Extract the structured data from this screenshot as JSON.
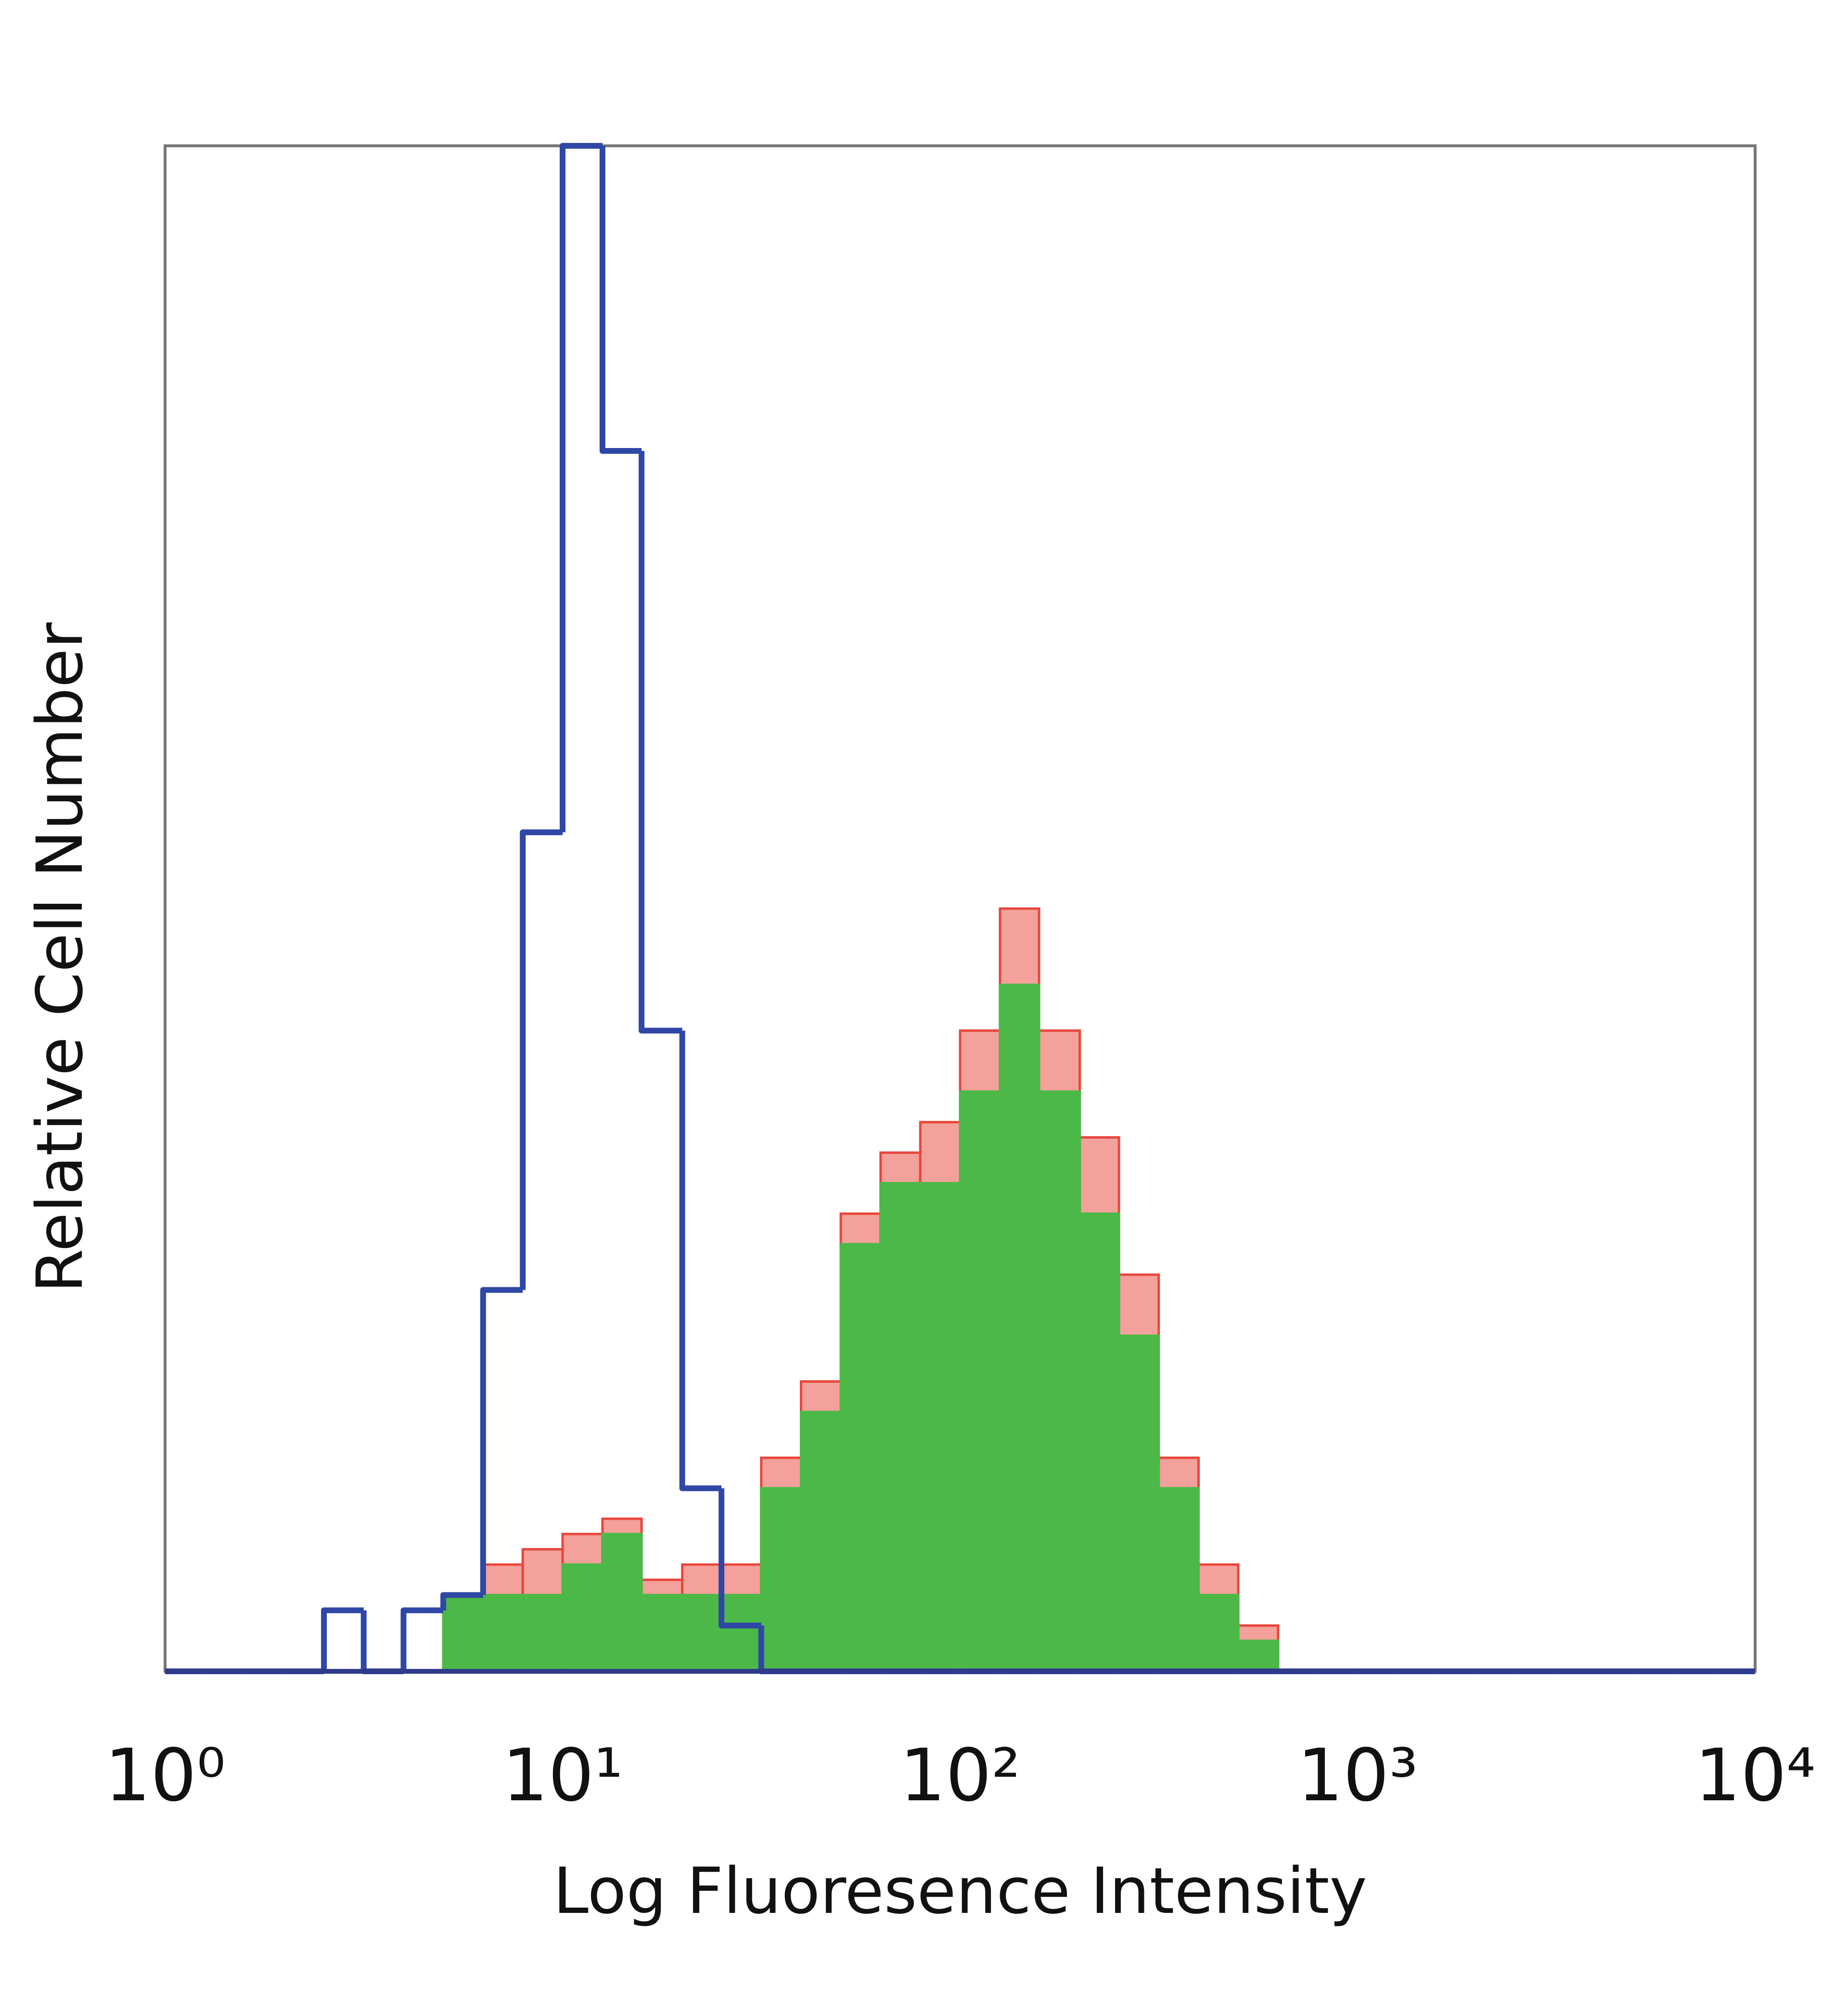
{
  "chart_data": {
    "type": "histogram",
    "x_label": "Log Fluoresence Intensity",
    "y_label": "Relative Cell Number",
    "xscale": "log",
    "xlim": [
      1,
      10000
    ],
    "ylim": [
      0,
      100
    ],
    "xticks": [
      {
        "value": 1,
        "label": "10⁰"
      },
      {
        "value": 10,
        "label": "10¹"
      },
      {
        "value": 100,
        "label": "10²"
      },
      {
        "value": 1000,
        "label": "10³"
      },
      {
        "value": 10000,
        "label": "10⁴"
      }
    ],
    "bins": [
      1,
      1.26,
      1.58,
      2,
      2.51,
      3.16,
      3.98,
      5.01,
      6.31,
      7.94,
      10,
      12.6,
      15.8,
      20,
      25.1,
      31.6,
      39.8,
      50.1,
      63.1,
      79.4,
      100,
      126,
      158,
      200,
      251,
      316,
      398,
      501,
      631,
      794,
      1000,
      1260,
      1580,
      2000,
      2510,
      3160,
      3980,
      5010,
      6310,
      7940,
      10000
    ],
    "series": [
      {
        "color": "#e8463c",
        "fill": "#f3a19a",
        "values": [
          0,
          0,
          0,
          0,
          0,
          0,
          0,
          5,
          7,
          8,
          9,
          10,
          6,
          7,
          7,
          14,
          19,
          30,
          34,
          36,
          42,
          50,
          42,
          35,
          26,
          14,
          7,
          3,
          0,
          0,
          0,
          0,
          0,
          0,
          0,
          0,
          0,
          0,
          0,
          0
        ]
      },
      {
        "color": "#4cb848",
        "fill": "#4cb848",
        "values": [
          0,
          0,
          0,
          0,
          0,
          0,
          0,
          5,
          5,
          5,
          7,
          9,
          5,
          5,
          5,
          12,
          17,
          28,
          32,
          32,
          38,
          45,
          38,
          30,
          22,
          12,
          5,
          2,
          0,
          0,
          0,
          0,
          0,
          0,
          0,
          0,
          0,
          0,
          0,
          0
        ]
      },
      {
        "color": "#2f47a5",
        "fill": false,
        "values": [
          0,
          0,
          0,
          0,
          4,
          0,
          4,
          5,
          25,
          55,
          100,
          80,
          42,
          12,
          3,
          0,
          0,
          0,
          0,
          0,
          0,
          0,
          0,
          0,
          0,
          0,
          0,
          0,
          0,
          0,
          0,
          0,
          0,
          0,
          0,
          0,
          0,
          0,
          0,
          0
        ]
      }
    ]
  }
}
